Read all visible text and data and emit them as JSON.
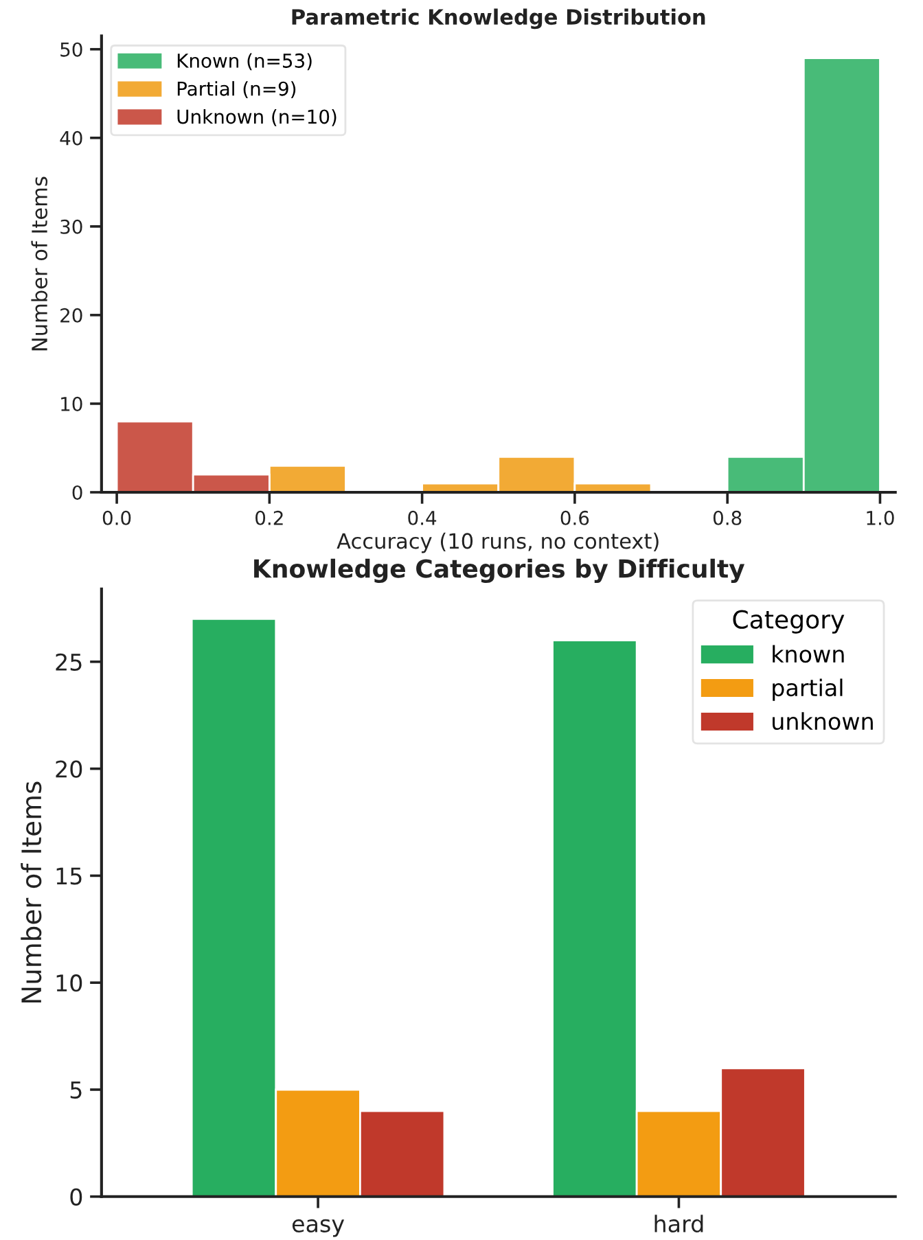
{
  "chart_data": [
    {
      "type": "histogram",
      "title": "Parametric Knowledge Distribution",
      "xlabel": "Accuracy (10 runs, no context)",
      "ylabel": "Number of Items",
      "bins": [
        0,
        0.1,
        0.2,
        0.3,
        0.4,
        0.5,
        0.6,
        0.7,
        0.8,
        0.9,
        1.0
      ],
      "series": [
        {
          "name": "Known (n=53)",
          "color": "#48bb78",
          "values": [
            0,
            0,
            0,
            0,
            0,
            0,
            0,
            0,
            4,
            49
          ]
        },
        {
          "name": "Partial (n=9)",
          "color": "#f2aa35",
          "values": [
            0,
            0,
            3,
            0,
            1,
            4,
            1,
            0,
            0,
            0
          ]
        },
        {
          "name": "Unknown (n=10)",
          "color": "#cb574a",
          "values": [
            8,
            2,
            0,
            0,
            0,
            0,
            0,
            0,
            0,
            0
          ]
        }
      ],
      "xlim": [
        -0.02,
        1.02
      ],
      "xticks": [
        {
          "value": 0,
          "label": "0.0"
        },
        0.2,
        0.4,
        0.6,
        0.8,
        {
          "value": 1,
          "label": "1.0"
        }
      ],
      "ylim": [
        0,
        51.5
      ],
      "yticks": [
        0,
        10,
        20,
        30,
        40,
        50
      ],
      "grid": false,
      "legend": "top left"
    },
    {
      "type": "bar",
      "title": "Knowledge Categories by Difficulty",
      "ylabel": "Number of Items",
      "legend_title": "Category",
      "categories": [
        "easy",
        "hard"
      ],
      "series": [
        {
          "name": "known",
          "color": "#27ae60",
          "values": [
            27,
            26
          ]
        },
        {
          "name": "partial",
          "color": "#f39c12",
          "values": [
            5,
            4
          ]
        },
        {
          "name": "unknown",
          "color": "#c0392b",
          "values": [
            4,
            6
          ]
        }
      ],
      "ylim": [
        0,
        28.4
      ],
      "yticks": [
        0,
        5,
        10,
        15,
        20,
        25
      ],
      "grid": false,
      "legend": "top right"
    }
  ]
}
